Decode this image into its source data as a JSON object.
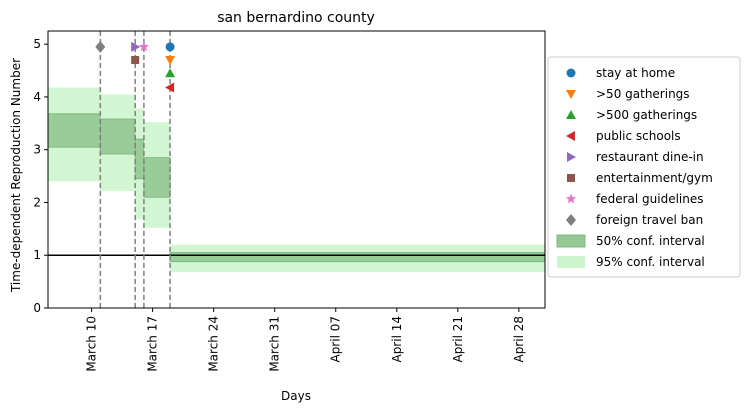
{
  "chart_data": {
    "type": "line",
    "title": "san bernardino county",
    "xlabel": "Days",
    "ylabel": "Time-dependent Reproduction Number",
    "xlim": [
      "2020-03-05",
      "2020-05-01"
    ],
    "ylim": [
      0,
      5.25
    ],
    "x_ticks": [
      {
        "date": "2020-03-10",
        "label": "March 10"
      },
      {
        "date": "2020-03-17",
        "label": "March 17"
      },
      {
        "date": "2020-03-24",
        "label": "March 24"
      },
      {
        "date": "2020-03-31",
        "label": "March 31"
      },
      {
        "date": "2020-04-07",
        "label": "April 07"
      },
      {
        "date": "2020-04-14",
        "label": "April 14"
      },
      {
        "date": "2020-04-21",
        "label": "April 21"
      },
      {
        "date": "2020-04-28",
        "label": "April 28"
      }
    ],
    "y_ticks": [
      0,
      1,
      2,
      3,
      4,
      5
    ],
    "reference_line": 1,
    "grid": false,
    "legend_position": "right",
    "intervals": [
      {
        "start": "2020-03-05",
        "end": "2020-03-11",
        "ci50": [
          3.05,
          3.68
        ],
        "ci95": [
          2.4,
          4.18
        ]
      },
      {
        "start": "2020-03-11",
        "end": "2020-03-15",
        "ci50": [
          2.92,
          3.58
        ],
        "ci95": [
          2.22,
          4.05
        ]
      },
      {
        "start": "2020-03-15",
        "end": "2020-03-16",
        "ci50": [
          2.45,
          3.2
        ],
        "ci95": [
          1.68,
          3.78
        ]
      },
      {
        "start": "2020-03-16",
        "end": "2020-03-19",
        "ci50": [
          2.1,
          2.85
        ],
        "ci95": [
          1.52,
          3.52
        ]
      },
      {
        "start": "2020-03-19",
        "end": "2020-05-01",
        "ci50": [
          0.88,
          1.05
        ],
        "ci95": [
          0.68,
          1.2
        ]
      }
    ],
    "interventions": [
      {
        "label": "stay at home",
        "date": "2020-03-19",
        "y": 4.95,
        "marker": "circle",
        "color": "#1f77b4"
      },
      {
        "label": ">50 gatherings",
        "date": "2020-03-19",
        "y": 4.7,
        "marker": "triangle-down",
        "color": "#ff7f0e"
      },
      {
        "label": ">500 gatherings",
        "date": "2020-03-19",
        "y": 4.45,
        "marker": "triangle-up",
        "color": "#2ca02c"
      },
      {
        "label": "public schools",
        "date": "2020-03-19",
        "y": 4.18,
        "marker": "triangle-left",
        "color": "#d62728"
      },
      {
        "label": "restaurant dine-in",
        "date": "2020-03-15",
        "y": 4.95,
        "marker": "triangle-right",
        "color": "#9467bd"
      },
      {
        "label": "entertainment/gym",
        "date": "2020-03-15",
        "y": 4.7,
        "marker": "square",
        "color": "#8c564b"
      },
      {
        "label": "federal guidelines",
        "date": "2020-03-16",
        "y": 4.95,
        "marker": "star",
        "color": "#e377c2"
      },
      {
        "label": "foreign travel ban",
        "date": "2020-03-11",
        "y": 4.95,
        "marker": "diamond",
        "color": "#7f7f7f"
      }
    ],
    "vlines": [
      "2020-03-11",
      "2020-03-15",
      "2020-03-16",
      "2020-03-19"
    ],
    "ci_legend": [
      {
        "label": "50% conf. interval",
        "color": "#94c894"
      },
      {
        "label": "95% conf. interval",
        "color": "#ccf5cc"
      }
    ],
    "colors": {
      "ci50": "#94c894",
      "ci95": "#ccf5cc",
      "vline": "#7f7f7f",
      "reference": "#000000"
    }
  }
}
